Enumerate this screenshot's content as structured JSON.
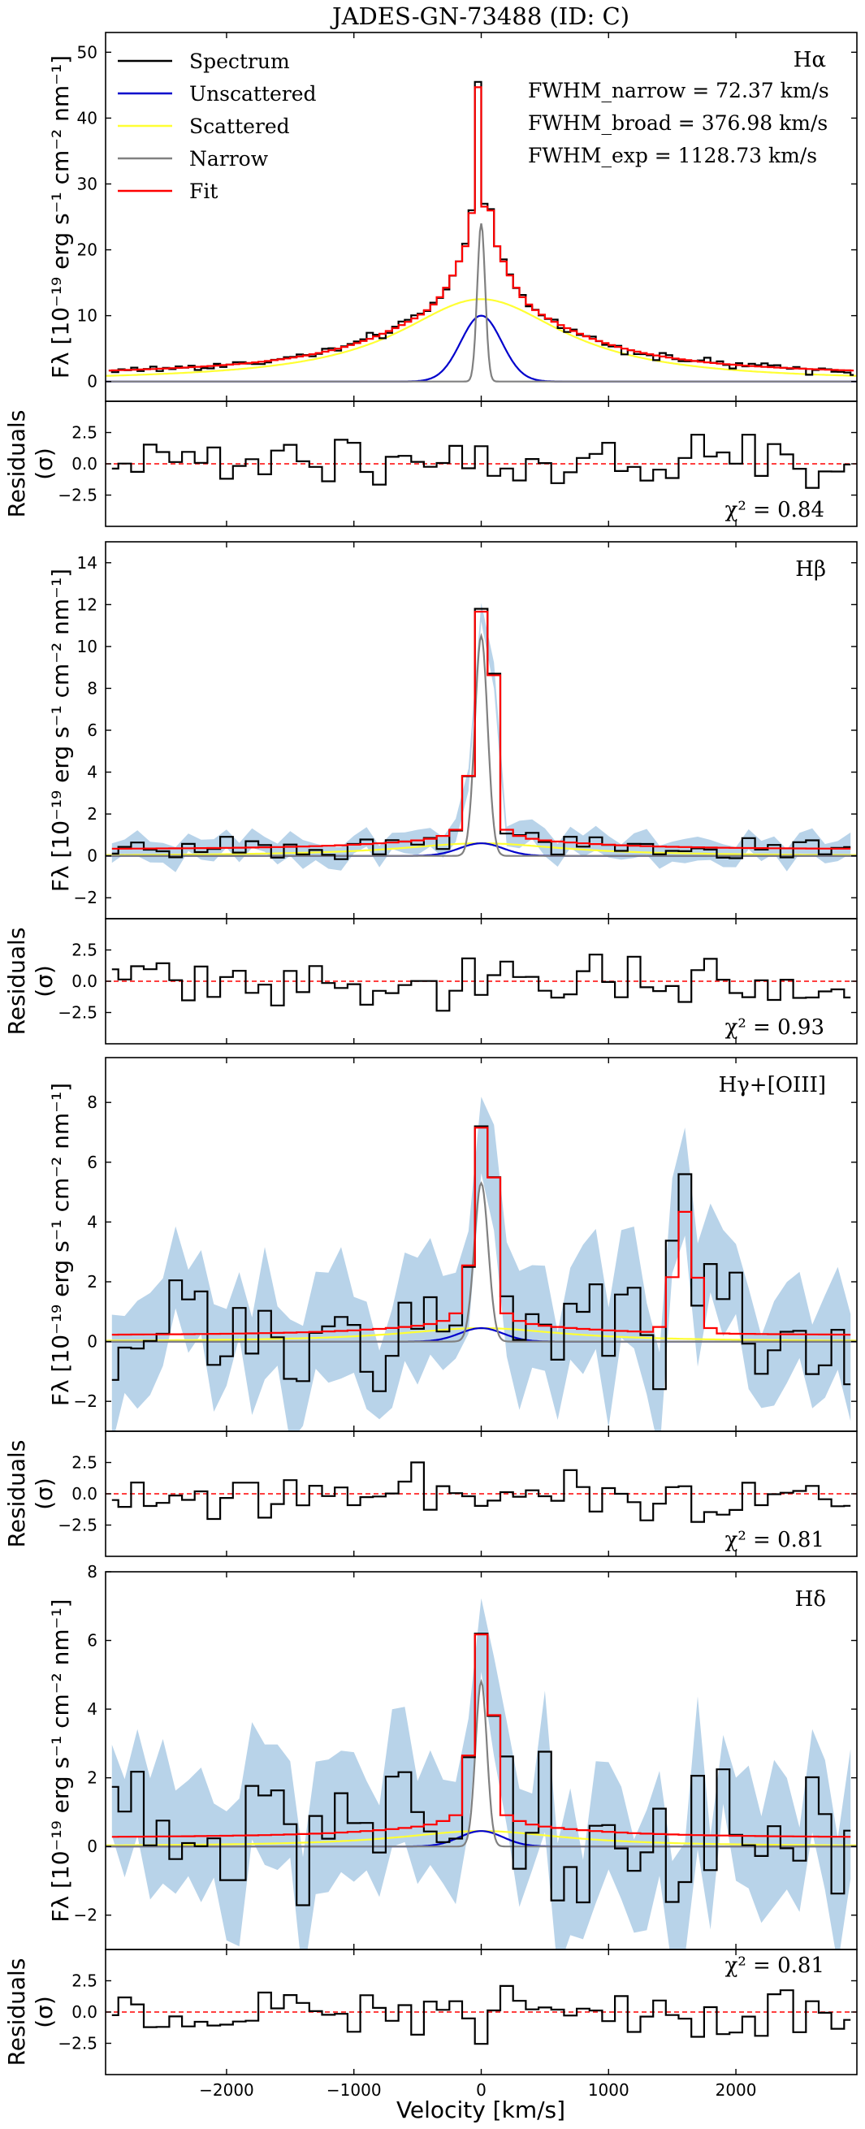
{
  "figure": {
    "title": "JADES-GN-73488 (ID: C)",
    "xlabel": "Velocity [km/s]",
    "ylabel_flux": "Fλ [10⁻¹⁹ erg s⁻¹ cm⁻² nm⁻¹]",
    "ylabel_resid_1": "Residuals",
    "ylabel_resid_2": "(σ)",
    "xlim": [
      -2950,
      2950
    ],
    "xticks": [
      -2000,
      -1000,
      0,
      1000,
      2000
    ],
    "xtick_labels": [
      "−2000",
      "−1000",
      "0",
      "1000",
      "2000"
    ],
    "colors": {
      "spectrum": "#000000",
      "unscattered": "#0000cc",
      "scattered": "#ffff33",
      "narrow": "#808080",
      "fit": "#ff0000",
      "error": "#a6c8e4",
      "zero": "#ff0000"
    }
  },
  "legend": {
    "entries": [
      {
        "label": "Spectrum",
        "color": "#000000"
      },
      {
        "label": "Unscattered",
        "color": "#0000cc"
      },
      {
        "label": "Scattered",
        "color": "#ffff33"
      },
      {
        "label": "Narrow",
        "color": "#808080"
      },
      {
        "label": "Fit",
        "color": "#ff0000"
      }
    ]
  },
  "fwhm": {
    "narrow": "FWHM_narrow = 72.37 km/s",
    "broad": "FWHM_broad = 376.98 km/s",
    "exp": "FWHM_exp = 1128.73 km/s"
  },
  "chart_data": [
    {
      "type": "line",
      "line": "Hα",
      "ylim": [
        -3,
        53
      ],
      "yticks": [
        0,
        10,
        20,
        30,
        40,
        50
      ],
      "chi2": "χ² = 0.84",
      "resid_ylim": [
        -5,
        5
      ],
      "resid_yticks": [
        -2.5,
        0.0,
        2.5
      ],
      "spectrum_peak": 45.5,
      "spectrum_peak_neighbors": [
        26,
        45.5,
        27
      ],
      "narrow_peak": 24,
      "narrow_sigma_kms": 31,
      "unscattered_peak": 10,
      "unscattered_sigma_kms": 160,
      "scattered_peak": 12.5,
      "scattered_width_kms": 800,
      "continuum": 0.8,
      "error_band": false
    },
    {
      "type": "line",
      "line": "Hβ",
      "ylim": [
        -3,
        15
      ],
      "yticks": [
        -2,
        0,
        2,
        4,
        6,
        8,
        10,
        12,
        14
      ],
      "chi2": "χ² = 0.93",
      "resid_ylim": [
        -5,
        5
      ],
      "resid_yticks": [
        -2.5,
        0.0,
        2.5
      ],
      "spectrum_peak": 11.8,
      "spectrum_peak_neighbors": [
        3.8,
        11.8,
        8.7
      ],
      "narrow_peak": 10.5,
      "narrow_sigma_kms": 50,
      "unscattered_peak": 0.6,
      "unscattered_sigma_kms": 170,
      "scattered_peak": 0.6,
      "scattered_width_kms": 800,
      "continuum": 0.3,
      "error_band": true
    },
    {
      "type": "line",
      "line": "Hγ+[OIII]",
      "ylim": [
        -3,
        9.5
      ],
      "yticks": [
        -2,
        0,
        2,
        4,
        6,
        8
      ],
      "chi2": "χ² = 0.81",
      "resid_ylim": [
        -5,
        5
      ],
      "resid_yticks": [
        -2.5,
        0.0,
        2.5
      ],
      "spectrum_peak": 7.2,
      "spectrum_peak_neighbors": [
        2.5,
        7.2,
        5.5
      ],
      "narrow_peak": 5.3,
      "narrow_sigma_kms": 55,
      "unscattered_peak": 0.45,
      "unscattered_sigma_kms": 170,
      "scattered_peak": 0.45,
      "scattered_width_kms": 800,
      "continuum": 0.2,
      "oiii_peak_kms": 1600,
      "oiii_peak": 4.5,
      "error_band": true
    },
    {
      "type": "line",
      "line": "Hδ",
      "ylim": [
        -3,
        8
      ],
      "yticks": [
        -2,
        0,
        2,
        4,
        6,
        8
      ],
      "chi2": "χ² = 0.81",
      "resid_ylim": [
        -5,
        5
      ],
      "resid_yticks": [
        -2.5,
        0.0,
        2.5
      ],
      "spectrum_peak": 6.2,
      "spectrum_peak_neighbors": [
        2.6,
        6.2,
        3.8
      ],
      "narrow_peak": 4.8,
      "narrow_sigma_kms": 45,
      "unscattered_peak": 0.45,
      "unscattered_sigma_kms": 170,
      "scattered_peak": 0.45,
      "scattered_width_kms": 800,
      "continuum": 0.25,
      "error_band": true
    }
  ]
}
